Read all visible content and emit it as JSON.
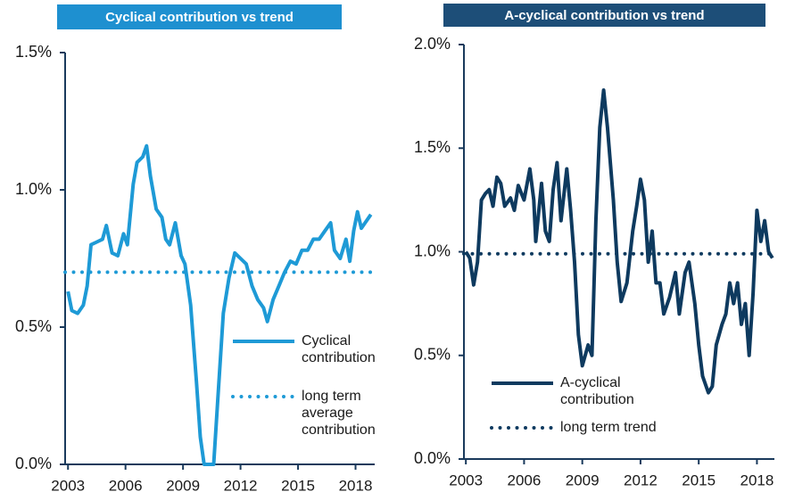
{
  "chart_data": [
    {
      "type": "line",
      "title": "Cyclical contribution vs trend",
      "title_color": "#1e90d0",
      "xlim": [
        2002.85,
        2019.0
      ],
      "xticks": [
        2003,
        2006,
        2009,
        2012,
        2015,
        2018
      ],
      "ylim": [
        0,
        1.5
      ],
      "yticks": [
        {
          "value": 0,
          "label": "0.0%"
        },
        {
          "value": 0.5,
          "label": "0.5%"
        },
        {
          "value": 1.0,
          "label": "1.0%"
        },
        {
          "value": 1.5,
          "label": "1.5%"
        }
      ],
      "legend": "center right",
      "series": [
        {
          "name": "Cyclical contribution",
          "color": "#1e9ad6",
          "style": "solid",
          "x": [
            2003.0,
            2003.2,
            2003.5,
            2003.8,
            2004.0,
            2004.2,
            2004.5,
            2004.8,
            2005.0,
            2005.3,
            2005.6,
            2005.9,
            2006.1,
            2006.4,
            2006.6,
            2006.9,
            2007.1,
            2007.3,
            2007.6,
            2007.9,
            2008.1,
            2008.3,
            2008.6,
            2008.9,
            2009.1,
            2009.4,
            2009.7,
            2009.9,
            2010.1,
            2010.4,
            2010.6,
            2010.8,
            2011.1,
            2011.4,
            2011.7,
            2012.0,
            2012.3,
            2012.6,
            2012.9,
            2013.2,
            2013.4,
            2013.7,
            2014.0,
            2014.3,
            2014.6,
            2014.9,
            2015.2,
            2015.5,
            2015.8,
            2016.1,
            2016.4,
            2016.7,
            2016.9,
            2017.2,
            2017.5,
            2017.7,
            2017.9,
            2018.1,
            2018.3,
            2018.6,
            2018.8
          ],
          "values": [
            0.63,
            0.56,
            0.55,
            0.58,
            0.65,
            0.8,
            0.81,
            0.82,
            0.87,
            0.77,
            0.76,
            0.84,
            0.8,
            1.02,
            1.1,
            1.12,
            1.16,
            1.05,
            0.93,
            0.9,
            0.82,
            0.8,
            0.88,
            0.76,
            0.73,
            0.58,
            0.3,
            0.1,
            0.0,
            0.0,
            0.0,
            0.22,
            0.55,
            0.68,
            0.77,
            0.75,
            0.73,
            0.65,
            0.6,
            0.57,
            0.52,
            0.6,
            0.65,
            0.7,
            0.74,
            0.73,
            0.78,
            0.78,
            0.82,
            0.82,
            0.85,
            0.88,
            0.78,
            0.75,
            0.82,
            0.74,
            0.85,
            0.92,
            0.86,
            0.89,
            0.91
          ]
        },
        {
          "name": "long term average contribution",
          "color": "#1e9ad6",
          "style": "dotted",
          "x": [
            2002.85,
            2019.0
          ],
          "values": [
            0.7,
            0.7
          ]
        }
      ]
    },
    {
      "type": "line",
      "title": "A-cyclical contribution vs trend",
      "title_color": "#1d4e78",
      "xlim": [
        2002.9,
        2018.9
      ],
      "xticks": [
        2003,
        2006,
        2009,
        2012,
        2015,
        2018
      ],
      "ylim": [
        0,
        2.0
      ],
      "yticks": [
        {
          "value": 0,
          "label": "0.0%"
        },
        {
          "value": 0.5,
          "label": "0.5%"
        },
        {
          "value": 1.0,
          "label": "1.0%"
        },
        {
          "value": 1.5,
          "label": "1.5%"
        },
        {
          "value": 2.0,
          "label": "2.0%"
        }
      ],
      "legend": "lower left",
      "series": [
        {
          "name": "A-cyclical contribution",
          "color": "#0e3a5f",
          "style": "solid",
          "x": [
            2003.0,
            2003.2,
            2003.4,
            2003.6,
            2003.8,
            2004.0,
            2004.2,
            2004.4,
            2004.6,
            2004.8,
            2005.0,
            2005.3,
            2005.5,
            2005.7,
            2006.0,
            2006.3,
            2006.5,
            2006.6,
            2006.9,
            2007.1,
            2007.3,
            2007.5,
            2007.7,
            2007.9,
            2008.2,
            2008.4,
            2008.6,
            2008.8,
            2009.0,
            2009.3,
            2009.5,
            2009.7,
            2009.9,
            2010.1,
            2010.3,
            2010.6,
            2010.8,
            2011.0,
            2011.3,
            2011.6,
            2011.8,
            2012.0,
            2012.2,
            2012.4,
            2012.6,
            2012.8,
            2013.0,
            2013.2,
            2013.5,
            2013.8,
            2014.0,
            2014.3,
            2014.5,
            2014.8,
            2015.0,
            2015.2,
            2015.5,
            2015.7,
            2015.9,
            2016.2,
            2016.4,
            2016.6,
            2016.8,
            2017.0,
            2017.2,
            2017.4,
            2017.6,
            2017.8,
            2018.0,
            2018.2,
            2018.4,
            2018.6,
            2018.8
          ],
          "values": [
            1.0,
            0.97,
            0.84,
            0.95,
            1.25,
            1.28,
            1.3,
            1.22,
            1.36,
            1.33,
            1.22,
            1.26,
            1.2,
            1.32,
            1.25,
            1.4,
            1.25,
            1.05,
            1.33,
            1.1,
            1.05,
            1.3,
            1.43,
            1.15,
            1.4,
            1.2,
            0.95,
            0.6,
            0.45,
            0.55,
            0.5,
            1.15,
            1.6,
            1.78,
            1.6,
            1.25,
            0.95,
            0.76,
            0.85,
            1.1,
            1.22,
            1.35,
            1.25,
            0.95,
            1.1,
            0.85,
            0.85,
            0.7,
            0.78,
            0.9,
            0.7,
            0.9,
            0.95,
            0.75,
            0.55,
            0.4,
            0.32,
            0.35,
            0.55,
            0.65,
            0.7,
            0.85,
            0.75,
            0.85,
            0.65,
            0.75,
            0.5,
            0.8,
            1.2,
            1.05,
            1.15,
            1.0,
            0.97
          ]
        },
        {
          "name": "long term trend",
          "color": "#0e3a5f",
          "style": "dotted",
          "x": [
            2002.9,
            2018.9
          ],
          "values": [
            0.99,
            0.99
          ]
        }
      ]
    }
  ]
}
